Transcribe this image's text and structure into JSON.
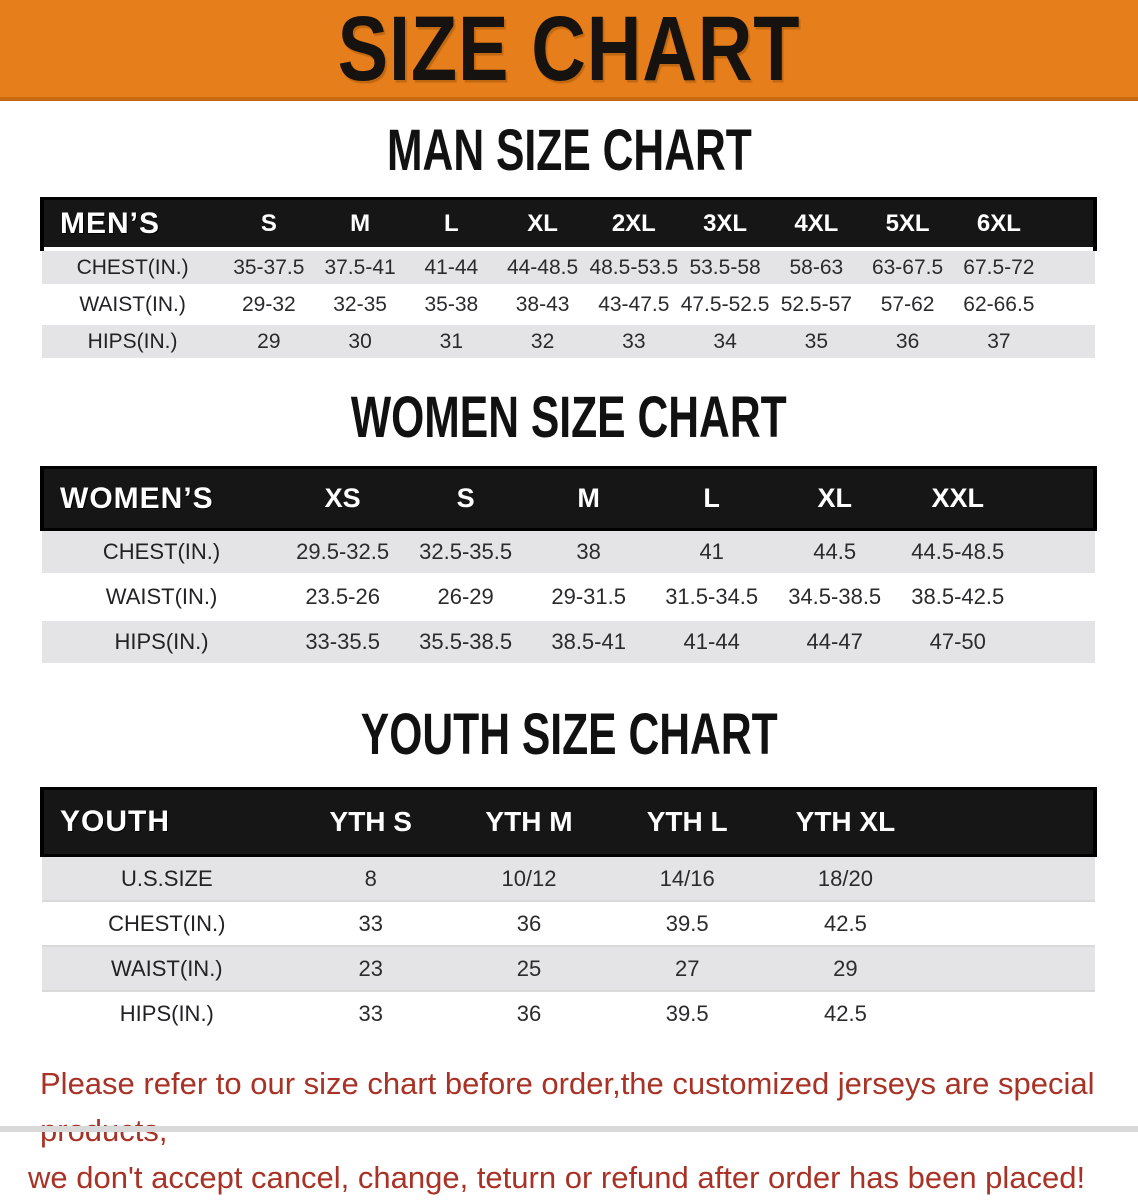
{
  "banner": {
    "title": "SIZE CHART"
  },
  "colors": {
    "banner_bg": "#E67E1B",
    "banner_edge": "#C8690F",
    "header_bar": "#161616",
    "row_alt": "#E4E4E6",
    "note_red": "#A93226"
  },
  "sections": [
    {
      "id": "men",
      "heading": "MAN SIZE CHART",
      "table": {
        "corner": "MEN’S",
        "columns": [
          "S",
          "M",
          "L",
          "XL",
          "2XL",
          "3XL",
          "4XL",
          "5XL",
          "6XL"
        ],
        "rows": [
          {
            "label": "CHEST(IN.)",
            "values": [
              "35-37.5",
              "37.5-41",
              "41-44",
              "44-48.5",
              "48.5-53.5",
              "53.5-58",
              "58-63",
              "63-67.5",
              "67.5-72"
            ]
          },
          {
            "label": "WAIST(IN.)",
            "values": [
              "29-32",
              "32-35",
              "35-38",
              "38-43",
              "43-47.5",
              "47.5-52.5",
              "52.5-57",
              "57-62",
              "62-66.5"
            ]
          },
          {
            "label": "HIPS(IN.)",
            "values": [
              "29",
              "30",
              "31",
              "32",
              "33",
              "34",
              "35",
              "36",
              "37"
            ]
          }
        ]
      }
    },
    {
      "id": "women",
      "heading": "WOMEN SIZE CHART",
      "table": {
        "corner": "WOMEN’S",
        "columns": [
          "XS",
          "S",
          "M",
          "L",
          "XL",
          "XXL"
        ],
        "rows": [
          {
            "label": "CHEST(IN.)",
            "values": [
              "29.5-32.5",
              "32.5-35.5",
              "38",
              "41",
              "44.5",
              "44.5-48.5"
            ]
          },
          {
            "label": "WAIST(IN.)",
            "values": [
              "23.5-26",
              "26-29",
              "29-31.5",
              "31.5-34.5",
              "34.5-38.5",
              "38.5-42.5"
            ]
          },
          {
            "label": "HIPS(IN.)",
            "values": [
              "33-35.5",
              "35.5-38.5",
              "38.5-41",
              "41-44",
              "44-47",
              "47-50"
            ]
          }
        ]
      }
    },
    {
      "id": "youth",
      "heading": "YOUTH SIZE CHART",
      "table": {
        "corner": "YOUTH",
        "columns": [
          "YTH S",
          "YTH M",
          "YTH L",
          "YTH XL"
        ],
        "rows": [
          {
            "label": "U.S.SIZE",
            "values": [
              "8",
              "10/12",
              "14/16",
              "18/20"
            ]
          },
          {
            "label": "CHEST(IN.)",
            "values": [
              "33",
              "36",
              "39.5",
              "42.5"
            ]
          },
          {
            "label": "WAIST(IN.)",
            "values": [
              "23",
              "25",
              "27",
              "29"
            ]
          },
          {
            "label": "HIPS(IN.)",
            "values": [
              "33",
              "36",
              "39.5",
              "42.5"
            ]
          }
        ]
      }
    }
  ],
  "footer": {
    "lines": [
      "Please refer to our size chart before order,the customized jerseys are special products,",
      "we don't accept cancel, change, teturn or refund after order has been placed!"
    ]
  }
}
